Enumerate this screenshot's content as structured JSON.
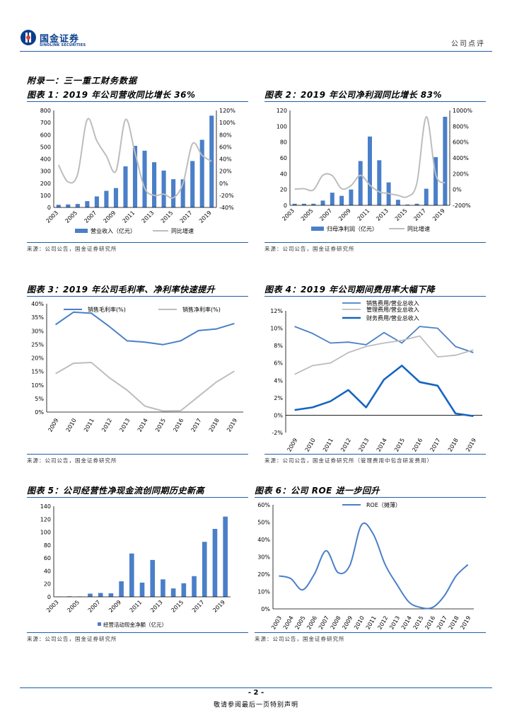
{
  "header": {
    "logo_cn": "国金证券",
    "logo_en": "SINOLINK SECURITIES",
    "report_type": "公司点评",
    "brand_color": "#0a3e8c"
  },
  "appendix_title": "附录一：三一重工财务数据",
  "figures": [
    {
      "title": "图表 1：2019 年公司营收同比增长 36%",
      "source": "来源：公司公告，国金证券研究所"
    },
    {
      "title": "图表 2：2019 年公司净利润同比增长 83%",
      "source": "来源：公司公告，国金证券研究所"
    },
    {
      "title": "图表 3：2019 年公司毛利率、净利率快速提升",
      "source": "来源：公司公告，国金证券研究所"
    },
    {
      "title": "图表 4：2019 年公司期间费用率大幅下降",
      "source": "来源：公司公告，国金证券研究所（管理费用中包含研发费用）"
    },
    {
      "title": "图表 5：公司经营性净现金流创同期历史新高",
      "source": "来源：公司公告，国金证券研究所"
    },
    {
      "title": "图表 6：公司 ROE 进一步回升",
      "source": "来源：公司公告，国金证券研究所"
    }
  ],
  "chart_data": [
    {
      "type": "bar+line",
      "title": "图表 1：2019 年公司营收同比增长 36%",
      "categories": [
        "2003",
        "2004",
        "2005",
        "2006",
        "2007",
        "2008",
        "2009",
        "2010",
        "2011",
        "2012",
        "2013",
        "2014",
        "2015",
        "2016",
        "2017",
        "2018",
        "2019"
      ],
      "x_tick_labels": [
        "2003",
        "2005",
        "2007",
        "2009",
        "2011",
        "2013",
        "2015",
        "2017",
        "2019"
      ],
      "series": [
        {
          "name": "营业收入（亿元）",
          "kind": "bar",
          "axis": "left",
          "values": [
            22,
            25,
            29,
            52,
            91,
            137,
            160,
            339,
            508,
            468,
            373,
            304,
            233,
            232,
            383,
            558,
            757
          ]
        },
        {
          "name": "同比增速",
          "kind": "line",
          "axis": "right",
          "values": [
            0.3,
            0.02,
            0.15,
            1.05,
            0.7,
            0.45,
            0.2,
            1.05,
            0.5,
            -0.08,
            -0.2,
            -0.18,
            -0.24,
            -0.01,
            0.65,
            0.46,
            0.36
          ]
        }
      ],
      "y_left": {
        "min": 0,
        "max": 800,
        "ticks": [
          "0",
          "100",
          "200",
          "300",
          "400",
          "500",
          "600",
          "700",
          "800"
        ]
      },
      "y_right": {
        "min": -0.4,
        "max": 1.2,
        "ticks": [
          "-40%",
          "-20%",
          "0%",
          "20%",
          "40%",
          "60%",
          "80%",
          "100%",
          "120%"
        ]
      },
      "colors": {
        "bar": "#4a7fc9",
        "line": "#bdbdbd"
      }
    },
    {
      "type": "bar+line",
      "title": "图表 2：2019 年公司净利润同比增长 83%",
      "categories": [
        "2003",
        "2004",
        "2005",
        "2006",
        "2007",
        "2008",
        "2009",
        "2010",
        "2011",
        "2012",
        "2013",
        "2014",
        "2015",
        "2016",
        "2017",
        "2018",
        "2019"
      ],
      "x_tick_labels": [
        "2003",
        "2005",
        "2007",
        "2009",
        "2011",
        "2013",
        "2015",
        "2017",
        "2019"
      ],
      "series": [
        {
          "name": "归母净利润（亿元）",
          "kind": "bar",
          "axis": "left",
          "values": [
            2,
            2,
            2,
            6,
            16,
            12,
            20,
            56,
            87,
            57,
            29,
            7,
            1,
            2,
            21,
            61,
            112
          ]
        },
        {
          "name": "同比增速",
          "kind": "line",
          "axis": "right",
          "values": [
            0.05,
            0.1,
            -0.05,
            1.8,
            1.75,
            0.1,
            0.5,
            1.8,
            0.55,
            -0.3,
            -0.5,
            -0.75,
            -0.9,
            0.8,
            9.2,
            1.9,
            0.83
          ]
        }
      ],
      "y_left": {
        "min": 0,
        "max": 120,
        "ticks": [
          "0",
          "20",
          "40",
          "60",
          "80",
          "100",
          "120"
        ]
      },
      "y_right": {
        "min": -2,
        "max": 10,
        "ticks": [
          "-200%",
          "0%",
          "200%",
          "400%",
          "600%",
          "800%",
          "1000%"
        ]
      },
      "colors": {
        "bar": "#4a7fc9",
        "line": "#bdbdbd"
      }
    },
    {
      "type": "line",
      "title": "图表 3：2019 年公司毛利率、净利率快速提升",
      "categories": [
        "2009",
        "2010",
        "2011",
        "2012",
        "2013",
        "2014",
        "2015",
        "2016",
        "2017",
        "2018",
        "2019"
      ],
      "series": [
        {
          "name": "销售毛利率(%)",
          "values": [
            32.3,
            36.9,
            36.5,
            31.6,
            26.3,
            25.8,
            24.9,
            26.3,
            30.1,
            30.7,
            32.7
          ],
          "color": "#4a7fc9"
        },
        {
          "name": "销售净利率(%)",
          "values": [
            14.2,
            18.0,
            18.3,
            12.7,
            8.1,
            2.2,
            0.4,
            0.5,
            5.8,
            11.1,
            15.1
          ],
          "color": "#bdbdbd"
        }
      ],
      "y_axis": {
        "min": 0,
        "max": 40,
        "ticks": [
          "0%",
          "5%",
          "10%",
          "15%",
          "20%",
          "25%",
          "30%",
          "35%",
          "40%"
        ]
      }
    },
    {
      "type": "line",
      "title": "图表 4：2019 年公司期间费用率大幅下降",
      "categories": [
        "2009",
        "2010",
        "2011",
        "2012",
        "2013",
        "2014",
        "2015",
        "2016",
        "2017",
        "2018",
        "2019"
      ],
      "series": [
        {
          "name": "销售费用/营业总收入",
          "values": [
            10.2,
            9.4,
            8.3,
            8.4,
            8.1,
            9.5,
            8.3,
            10.2,
            10.0,
            7.9,
            7.2
          ],
          "color": "#4a7fc9"
        },
        {
          "name": "管理费用/营业总收入",
          "values": [
            4.7,
            5.7,
            6.0,
            7.2,
            7.9,
            8.3,
            8.6,
            9.1,
            6.7,
            6.9,
            7.5
          ],
          "color": "#bdbdbd"
        },
        {
          "name": "财务费用/营业总收入",
          "values": [
            0.6,
            0.9,
            1.6,
            2.9,
            0.9,
            4.1,
            5.7,
            3.8,
            3.4,
            0.2,
            -0.1
          ],
          "color": "#1565c0"
        }
      ],
      "y_axis": {
        "min": -2,
        "max": 12,
        "ticks": [
          "-2%",
          "0%",
          "2%",
          "4%",
          "6%",
          "8%",
          "10%",
          "12%"
        ]
      }
    },
    {
      "type": "bar",
      "title": "图表 5：公司经营性净现金流创同期历史新高",
      "categories": [
        "2003",
        "2004",
        "2005",
        "2006",
        "2007",
        "2008",
        "2009",
        "2010",
        "2011",
        "2012",
        "2013",
        "2014",
        "2015",
        "2016",
        "2017",
        "2018",
        "2019"
      ],
      "x_tick_labels": [
        "2003",
        "2005",
        "2007",
        "2009",
        "2011",
        "2013",
        "2015",
        "2017",
        "2019"
      ],
      "series": [
        {
          "name": "经营活动现金净额（亿元）",
          "values": [
            0.5,
            0.8,
            0.6,
            5,
            6,
            5.5,
            24,
            67,
            22,
            57,
            27,
            13,
            21,
            32,
            85,
            105,
            124
          ]
        }
      ],
      "y_axis": {
        "min": 0,
        "max": 140,
        "ticks": [
          "0",
          "20",
          "40",
          "60",
          "80",
          "100",
          "120",
          "140"
        ]
      },
      "colors": {
        "bar": "#4a7fc9"
      }
    },
    {
      "type": "line",
      "title": "图表 6：公司 ROE 进一步回升",
      "categories": [
        "2003",
        "2004",
        "2005",
        "2006",
        "2007",
        "2008",
        "2009",
        "2010",
        "2011",
        "2012",
        "2013",
        "2014",
        "2015",
        "2016",
        "2017",
        "2018",
        "2019"
      ],
      "series": [
        {
          "name": "ROE（摊薄）",
          "values": [
            19,
            17.5,
            11,
            20,
            33.5,
            21,
            25,
            48.5,
            43,
            25.5,
            14,
            4,
            0.8,
            0.8,
            7.5,
            19,
            25.5
          ],
          "color": "#4a7fc9"
        }
      ],
      "y_axis": {
        "min": 0,
        "max": 60,
        "ticks": [
          "0%",
          "10%",
          "20%",
          "30%",
          "40%",
          "50%",
          "60%"
        ]
      }
    }
  ],
  "footer": {
    "page_number": "- 2 -",
    "note": "敬请参阅最后一页特别声明"
  }
}
